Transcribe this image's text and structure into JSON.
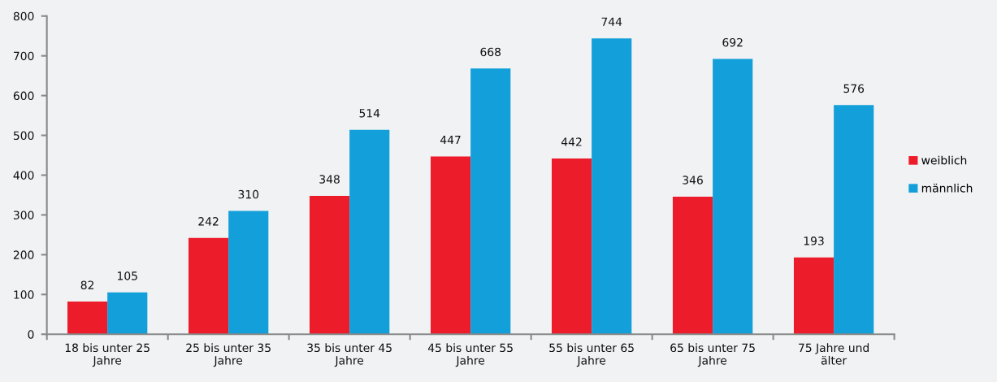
{
  "chart_data": {
    "type": "bar",
    "categories": [
      "18 bis unter 25\nJahre",
      "25 bis unter 35\nJahre",
      "35 bis unter 45\nJahre",
      "45 bis unter 55\nJahre",
      "55 bis unter 65\nJahre",
      "65 bis unter 75\nJahre",
      "75 Jahre und\nälter"
    ],
    "series": [
      {
        "name": "weiblich",
        "color": "#ed1c2a",
        "values": [
          82,
          242,
          348,
          447,
          442,
          346,
          193
        ]
      },
      {
        "name": "männlich",
        "color": "#139fd9",
        "values": [
          105,
          310,
          514,
          668,
          744,
          692,
          576
        ]
      }
    ],
    "ylim": [
      0,
      800
    ],
    "yticks": [
      0,
      100,
      200,
      300,
      400,
      500,
      600,
      700,
      800
    ],
    "grid": false,
    "legend": "right",
    "data_labels": true
  }
}
